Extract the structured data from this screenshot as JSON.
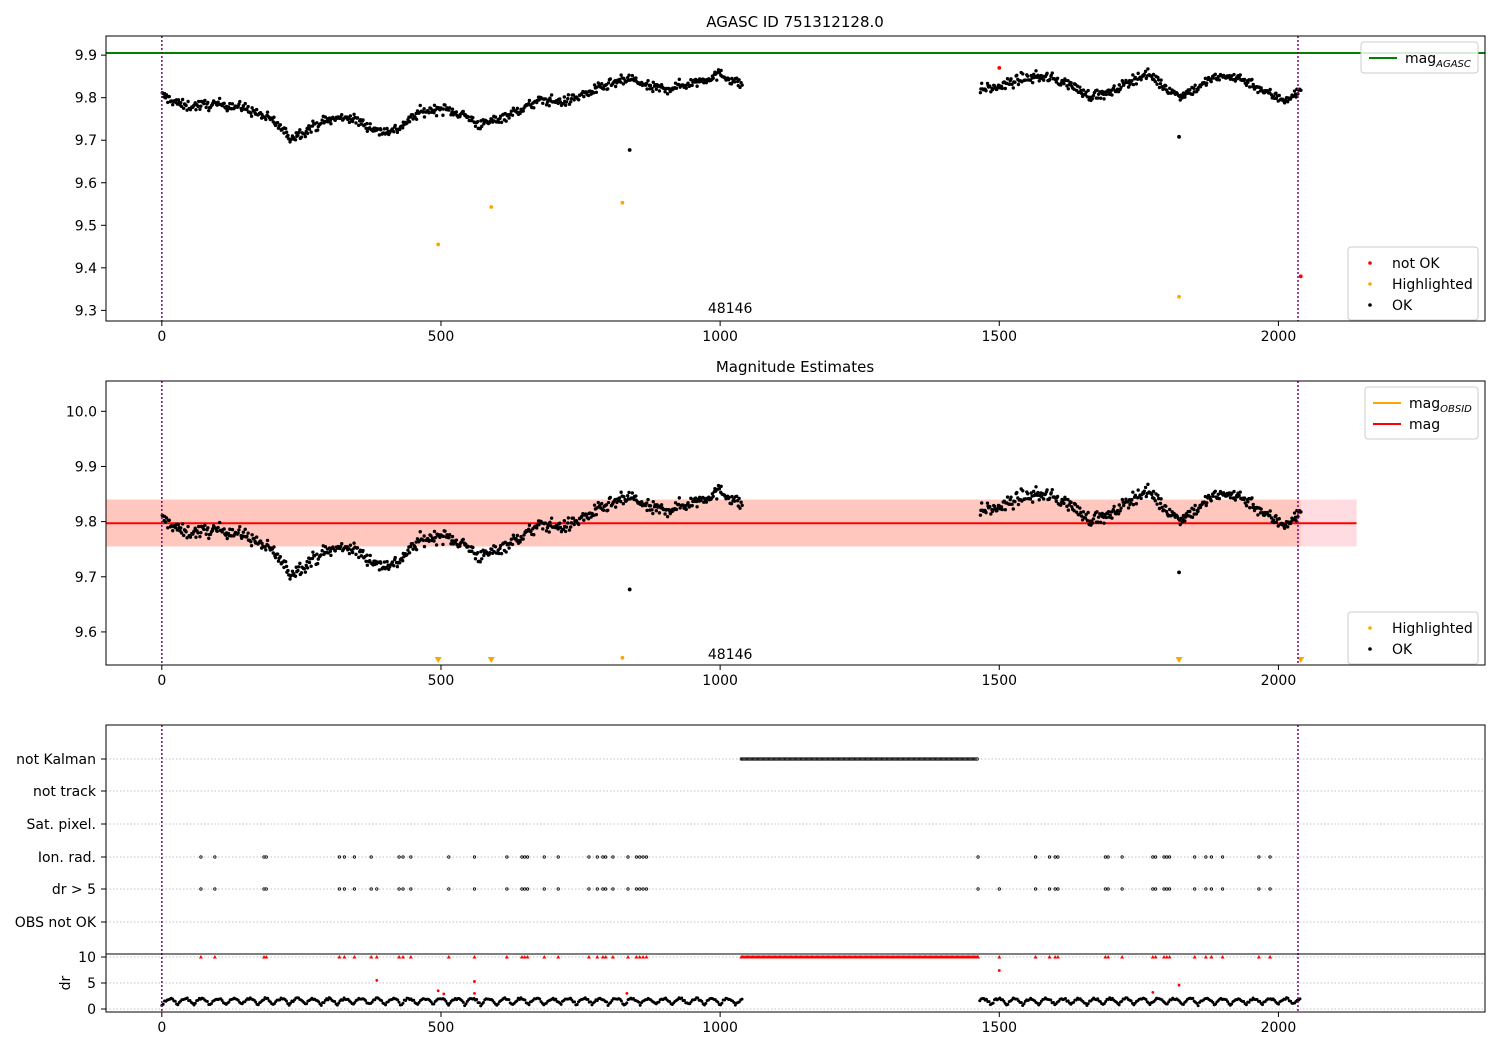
{
  "figure": {
    "width": 1500,
    "height": 1050
  },
  "colors": {
    "ok": "#000000",
    "not_ok": "#ff0000",
    "highlighted": "#ffa500",
    "agasc_line": "#008000",
    "mag_line": "#ff0000",
    "mag_obsid_line": "#ffa500",
    "vline": "#800080",
    "band_outer": "#ffc0cb",
    "band_inner": "#ffa07a",
    "grid": "#b0b0b0"
  },
  "chart_data": [
    {
      "type": "scatter",
      "title": "AGASC ID 751312128.0",
      "xlim": [
        -100,
        2370
      ],
      "ylim": [
        9.275,
        9.945
      ],
      "xticks": [
        0,
        500,
        1000,
        1500,
        2000
      ],
      "yticks": [
        9.3,
        9.4,
        9.5,
        9.6,
        9.7,
        9.8,
        9.9
      ],
      "ytick_labels": [
        "9.3",
        "9.4",
        "9.5",
        "9.6",
        "9.7",
        "9.8",
        "9.9"
      ],
      "annotation": "48146",
      "annotation_x": 1018,
      "annotation_y": 9.305,
      "vlines": [
        0,
        2035
      ],
      "hlines": [
        {
          "name": "mag_AGASC",
          "value": 9.905
        }
      ],
      "legends": [
        {
          "position": "top-right",
          "entries": [
            {
              "kind": "line",
              "label": "mag",
              "sub": "AGASC",
              "color": "#008000"
            }
          ]
        },
        {
          "position": "bottom-right",
          "entries": [
            {
              "kind": "dot",
              "label": "not OK",
              "color": "#ff0000"
            },
            {
              "kind": "dot",
              "label": "Highlighted",
              "color": "#ffa500"
            },
            {
              "kind": "dot",
              "label": "OK",
              "color": "#000000"
            }
          ]
        }
      ],
      "segments": [
        [
          0,
          1040
        ],
        [
          1465,
          2040
        ]
      ],
      "series": [
        {
          "name": "OK",
          "color": "#000000",
          "points": [
            [
              838,
              9.677
            ],
            [
              1822,
              9.708
            ]
          ]
        },
        {
          "name": "Highlighted",
          "color": "#ffa500",
          "points": [
            [
              495,
              9.455
            ],
            [
              590,
              9.543
            ],
            [
              825,
              9.553
            ],
            [
              1822,
              9.332
            ]
          ]
        },
        {
          "name": "not OK",
          "color": "#ff0000",
          "points": [
            [
              1500,
              9.87
            ],
            [
              2040,
              9.38
            ]
          ]
        }
      ]
    },
    {
      "type": "scatter",
      "title": "Magnitude Estimates",
      "xlim": [
        -100,
        2370
      ],
      "ylim": [
        9.54,
        10.055
      ],
      "xticks": [
        0,
        500,
        1000,
        1500,
        2000
      ],
      "yticks": [
        9.6,
        9.7,
        9.8,
        9.9,
        10.0
      ],
      "ytick_labels": [
        "9.6",
        "9.7",
        "9.8",
        "9.9",
        "10.0"
      ],
      "annotation": "48146",
      "annotation_x": 1018,
      "annotation_y": 9.56,
      "vlines": [
        0,
        2035
      ],
      "mag": 9.797,
      "band_outer": [
        9.755,
        9.84
      ],
      "band_inner": [
        9.755,
        9.84
      ],
      "band_inner_x": [
        -100,
        2140
      ],
      "band_outer_x": [
        -100,
        2140
      ],
      "legends": [
        {
          "position": "top-right",
          "entries": [
            {
              "kind": "line",
              "label": "mag",
              "sub": "OBSID",
              "color": "#ffa500"
            },
            {
              "kind": "line",
              "label": "mag",
              "color": "#ff0000"
            }
          ]
        },
        {
          "position": "bottom-right",
          "entries": [
            {
              "kind": "dot",
              "label": "Highlighted",
              "color": "#ffa500"
            },
            {
              "kind": "dot",
              "label": "OK",
              "color": "#000000"
            }
          ]
        }
      ],
      "series": [
        {
          "name": "OK",
          "color": "#000000",
          "points": [
            [
              838,
              9.677
            ],
            [
              1822,
              9.708
            ]
          ]
        },
        {
          "name": "Highlighted",
          "color": "#ffa500",
          "points": [
            [
              825,
              9.553
            ]
          ]
        },
        {
          "name": "Highlighted (off-scale)",
          "color": "#ffa500",
          "marker": "triangle-down",
          "points": [
            [
              495,
              9.545
            ],
            [
              590,
              9.545
            ],
            [
              1822,
              9.545
            ],
            [
              2040,
              9.548
            ]
          ]
        }
      ]
    },
    {
      "type": "scatter",
      "title": "",
      "xlim": [
        -100,
        2370
      ],
      "flag_rows": [
        "not Kalman",
        "not track",
        "Sat. pixel.",
        "Ion. rad.",
        "dr > 5",
        "OBS not OK"
      ],
      "flag_points": {
        "not Kalman": {
          "range": [
            1038,
            1462
          ]
        },
        "Ion. rad.": [
          70,
          95,
          183,
          187,
          318,
          327,
          345,
          375,
          425,
          432,
          446,
          514,
          560,
          618,
          645,
          650,
          655,
          685,
          710,
          765,
          780,
          790,
          795,
          808,
          835,
          850,
          856,
          862,
          868,
          1462,
          1565,
          1590,
          1600,
          1605,
          1690,
          1695,
          1720,
          1775,
          1780,
          1795,
          1800,
          1805,
          1850,
          1870,
          1880,
          1900,
          1965,
          1985
        ],
        "dr > 5": [
          70,
          95,
          183,
          187,
          318,
          327,
          345,
          375,
          385,
          425,
          432,
          446,
          514,
          560,
          618,
          645,
          650,
          655,
          685,
          710,
          765,
          780,
          790,
          795,
          808,
          835,
          850,
          856,
          862,
          868,
          1462,
          1500,
          1565,
          1590,
          1600,
          1605,
          1690,
          1695,
          1720,
          1775,
          1780,
          1795,
          1800,
          1805,
          1850,
          1870,
          1880,
          1900,
          1965,
          1985
        ]
      },
      "dr_panel": {
        "ylabel": "dr",
        "ylim": [
          -0.3,
          10.3
        ],
        "yticks": [
          0,
          5,
          10
        ],
        "ytick_labels": [
          "0",
          "5",
          "10"
        ],
        "clip_value": 10,
        "high_points": [
          [
            385,
            5.5
          ],
          [
            495,
            3.5
          ],
          [
            505,
            2.9
          ],
          [
            560,
            5.3
          ],
          [
            560,
            3.0
          ],
          [
            833,
            3.0
          ],
          [
            1500,
            7.4
          ],
          [
            1775,
            3.2
          ],
          [
            1822,
            4.6
          ]
        ]
      },
      "xticks": [
        0,
        500,
        1000,
        1500,
        2000
      ],
      "vlines": [
        0,
        2035
      ]
    }
  ]
}
